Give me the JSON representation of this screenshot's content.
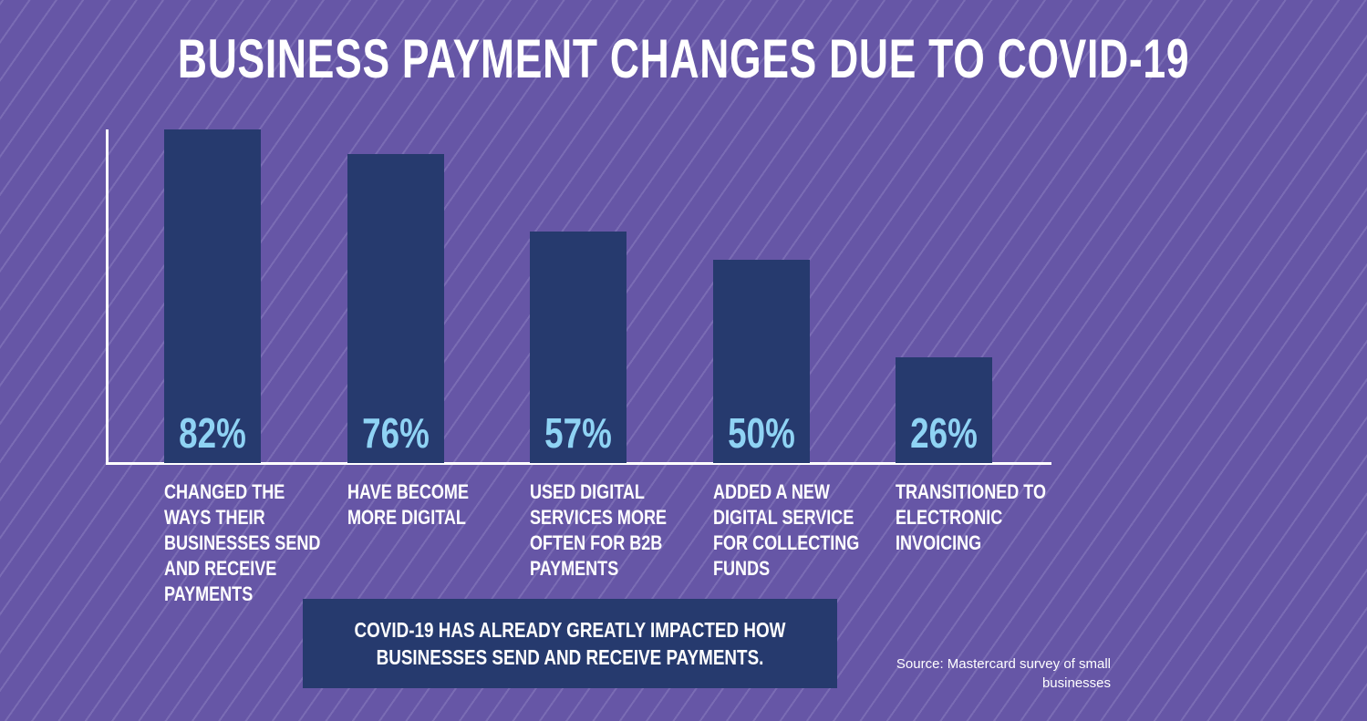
{
  "chart_data": {
    "type": "bar",
    "title": "BUSINESS PAYMENT CHANGES DUE TO COVID-19",
    "categories": [
      "CHANGED THE WAYS THEIR BUSINESSES SEND AND RECEIVE PAYMENTS",
      "HAVE BECOME MORE DIGITAL",
      "USED DIGITAL SERVICES MORE OFTEN FOR B2B PAYMENTS",
      "ADDED A NEW DIGITAL SERVICE FOR COLLECTING FUNDS",
      "TRANSITIONED TO ELECTRONIC INVOICING"
    ],
    "values": [
      82,
      76,
      57,
      50,
      26
    ],
    "value_labels": [
      "82%",
      "76%",
      "57%",
      "50%",
      "26%"
    ],
    "color": "#263a6e",
    "value_label_color": "#8fd3f4",
    "ylim": [
      0,
      82
    ],
    "annotation": "COVID-19 HAS ALREADY GREATLY IMPACTED HOW BUSINESSES SEND AND RECEIVE PAYMENTS.",
    "source": "Source: Mastercard survey of small businesses"
  }
}
